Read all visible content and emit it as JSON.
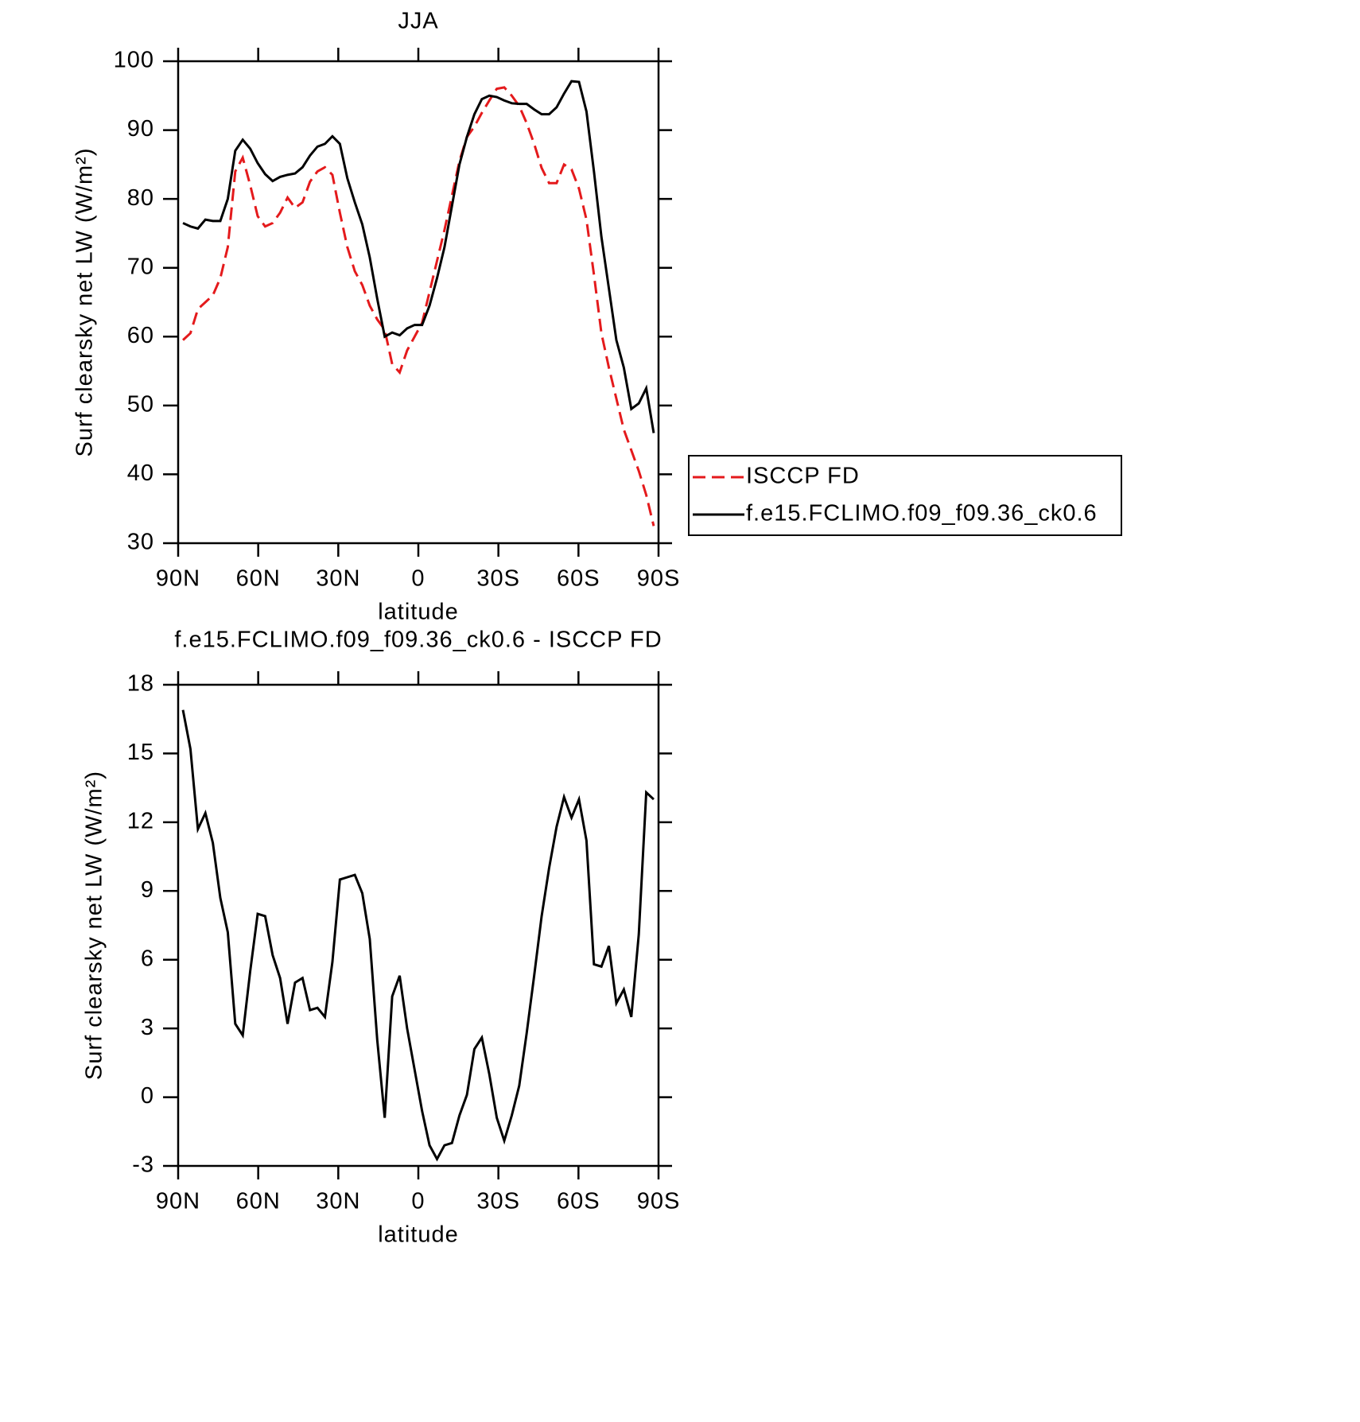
{
  "chart_data": [
    {
      "type": "line",
      "title": "JJA",
      "xlabel": "latitude",
      "ylabel": "Surf clearsky net LW (W/m²)",
      "x": [
        88.2,
        85.4,
        82.6,
        79.8,
        77,
        74.2,
        71.4,
        68.6,
        65.8,
        63,
        60.2,
        57.4,
        54.6,
        51.8,
        49,
        46.2,
        43.4,
        40.6,
        37.8,
        35,
        32.2,
        29.4,
        26.6,
        23.8,
        21,
        18.2,
        15.4,
        12.6,
        9.8,
        7,
        4.2,
        1.4,
        -1.4,
        -4.2,
        -7,
        -9.8,
        -12.6,
        -15.4,
        -18.2,
        -21,
        -23.8,
        -26.6,
        -29.4,
        -32.2,
        -35,
        -37.8,
        -40.6,
        -43.4,
        -46.2,
        -49,
        -51.8,
        -54.6,
        -57.4,
        -60.2,
        -63,
        -65.8,
        -68.6,
        -71.4,
        -74.2,
        -77,
        -79.8,
        -82.6,
        -85.4,
        -88.2
      ],
      "series": [
        {
          "name": "ISCCP FD",
          "color": "#e41a1c",
          "linestyle": "dashed",
          "values": [
            59.5,
            60.5,
            64,
            65,
            66,
            68.5,
            73,
            84,
            86,
            82,
            77.5,
            76,
            76.5,
            78,
            80.2,
            78.7,
            79.5,
            82.5,
            84,
            84.6,
            83.5,
            78,
            73,
            69.5,
            67.5,
            64.5,
            62.5,
            61,
            56,
            54.8,
            58,
            60,
            62,
            66.5,
            71,
            75.5,
            80.5,
            85.5,
            89,
            90.5,
            92.5,
            94.3,
            96,
            96.2,
            95,
            93.5,
            91,
            88,
            84.5,
            82.3,
            82.3,
            85,
            84.3,
            81.5,
            77,
            69,
            60.5,
            55.5,
            51,
            46.5,
            43.5,
            40.5,
            37,
            32.5
          ]
        },
        {
          "name": "f.e15.FCLIMO.f09_f09.36_ck0.6",
          "color": "#000000",
          "linestyle": "solid",
          "values": [
            76.5,
            76,
            75.7,
            77,
            76.8,
            76.8,
            80,
            87,
            88.6,
            87.3,
            85.2,
            83.6,
            82.6,
            83.2,
            83.5,
            83.7,
            84.6,
            86.3,
            87.6,
            88,
            89.1,
            88,
            83,
            79.5,
            76.3,
            71.5,
            65.5,
            60,
            60.6,
            60.2,
            61.2,
            61.7,
            61.7,
            64.5,
            68.5,
            73,
            79,
            85,
            89,
            92.3,
            94.5,
            95,
            94.8,
            94.3,
            93.9,
            93.8,
            93.8,
            93,
            92.3,
            92.3,
            93.3,
            95.3,
            97.1,
            97,
            92.7,
            84,
            74.5,
            67,
            59.5,
            55.5,
            49.5,
            50.3,
            52.5,
            46
          ]
        }
      ],
      "xlim": [
        90,
        -90
      ],
      "xticks": [
        {
          "value": 90,
          "label": "90N"
        },
        {
          "value": 60,
          "label": "60N"
        },
        {
          "value": 30,
          "label": "30N"
        },
        0,
        {
          "value": -30,
          "label": "30S"
        },
        {
          "value": -60,
          "label": "60S"
        },
        {
          "value": -90,
          "label": "90S"
        }
      ],
      "ylim": [
        30,
        100
      ],
      "yticks": [
        30,
        40,
        50,
        60,
        70,
        80,
        90,
        100
      ],
      "legend": "right"
    },
    {
      "type": "line",
      "title": "f.e15.FCLIMO.f09_f09.36_ck0.6 - ISCCP FD",
      "xlabel": "latitude",
      "ylabel": "Surf clearsky net LW (W/m²)",
      "x": [
        88.2,
        85.4,
        82.6,
        79.8,
        77,
        74.2,
        71.4,
        68.6,
        65.8,
        63,
        60.2,
        57.4,
        54.6,
        51.8,
        49,
        46.2,
        43.4,
        40.6,
        37.8,
        35,
        32.2,
        29.4,
        26.6,
        23.8,
        21,
        18.2,
        15.4,
        12.6,
        9.8,
        7,
        4.2,
        1.4,
        -1.4,
        -4.2,
        -7,
        -9.8,
        -12.6,
        -15.4,
        -18.2,
        -21,
        -23.8,
        -26.6,
        -29.4,
        -32.2,
        -35,
        -37.8,
        -40.6,
        -43.4,
        -46.2,
        -49,
        -51.8,
        -54.6,
        -57.4,
        -60.2,
        -63,
        -65.8,
        -68.6,
        -71.4,
        -74.2,
        -77,
        -79.8,
        -82.6,
        -85.4,
        -88.2
      ],
      "series": [
        {
          "color": "#000000",
          "linestyle": "solid",
          "values": [
            16.9,
            15.2,
            11.7,
            12.4,
            11.1,
            8.7,
            7.2,
            3.2,
            2.7,
            5.5,
            8,
            7.9,
            6.2,
            5.2,
            3.2,
            5,
            5.2,
            3.8,
            3.9,
            3.5,
            5.9,
            9.5,
            9.6,
            9.7,
            8.9,
            6.9,
            2.5,
            -0.9,
            4.4,
            5.3,
            3,
            1.2,
            -0.6,
            -2.1,
            -2.7,
            -2.1,
            -2,
            -0.8,
            0.1,
            2.1,
            2.6,
            1,
            -0.9,
            -1.9,
            -0.8,
            0.5,
            2.8,
            5.3,
            7.9,
            10,
            11.8,
            13.1,
            12.2,
            13,
            11.2,
            5.8,
            5.7,
            6.6,
            4.1,
            4.7,
            3.5,
            7.1,
            13.3,
            13
          ]
        }
      ],
      "xlim": [
        90,
        -90
      ],
      "xticks": [
        {
          "value": 90,
          "label": "90N"
        },
        {
          "value": 60,
          "label": "60N"
        },
        {
          "value": 30,
          "label": "30N"
        },
        0,
        {
          "value": -30,
          "label": "30S"
        },
        {
          "value": -60,
          "label": "60S"
        },
        {
          "value": -90,
          "label": "90S"
        }
      ],
      "ylim": [
        -3,
        18
      ],
      "yticks": [
        -3,
        0,
        3,
        6,
        9,
        12,
        15,
        18
      ]
    }
  ]
}
